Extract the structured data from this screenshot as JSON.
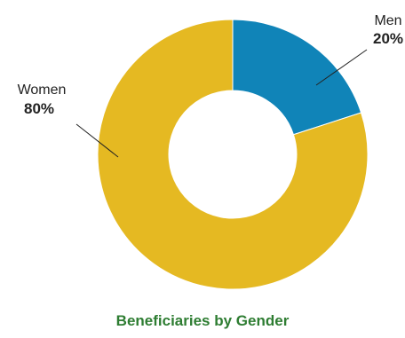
{
  "chart_data": {
    "type": "pie",
    "title": "Beneficiaries by Gender",
    "hole": true,
    "slices": [
      {
        "name": "Men",
        "value": 20,
        "label": "20%",
        "color": "#1084b8"
      },
      {
        "name": "Women",
        "value": 80,
        "label": "80%",
        "color": "#e5b922"
      }
    ]
  }
}
